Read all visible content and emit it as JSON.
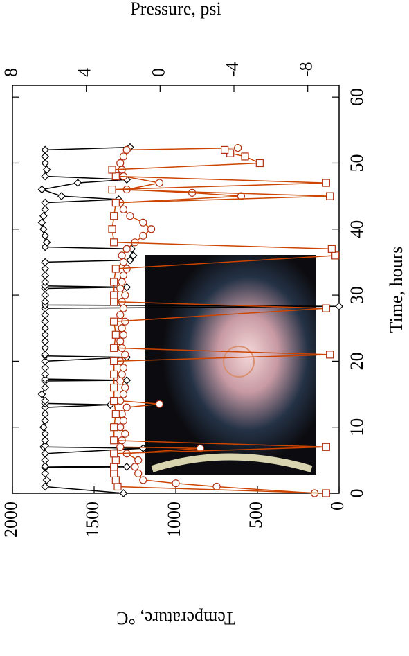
{
  "chart_data": {
    "type": "line",
    "xlabel": "Time, hours",
    "ylabel": "Temperature, °C",
    "y2label": "Pressure, psi",
    "xlim": [
      0,
      61.8
    ],
    "xticks": [
      0,
      10,
      20,
      30,
      40,
      50,
      60
    ],
    "ylim": [
      0,
      2000
    ],
    "yticks": [
      0,
      500,
      1000,
      1500,
      2000
    ],
    "y2lim": [
      -9.7,
      8
    ],
    "y2ticks": [
      8,
      4,
      0,
      -4,
      -8
    ],
    "series": [
      {
        "color": "#000000",
        "marker": "diamond",
        "x": [
          0,
          1,
          2,
          3,
          3.9,
          4,
          4.1,
          5,
          6,
          6.8,
          7,
          7.2,
          8,
          9,
          10,
          11,
          12,
          13,
          13.4,
          13.6,
          14,
          15,
          16,
          17,
          17.1,
          17.3,
          18,
          19,
          20,
          20.6,
          20.8,
          21,
          22,
          23,
          24,
          25,
          26,
          27,
          28,
          28.3,
          28.5,
          29,
          30,
          31,
          31.2,
          31.4,
          32,
          33,
          34,
          35,
          35.3,
          36,
          37,
          37.3,
          38,
          39,
          40,
          41,
          42,
          43,
          44,
          44.5,
          45,
          46,
          47,
          47.5,
          48,
          49,
          50,
          51,
          52,
          52.4
        ],
        "values": [
          1320,
          1800,
          1790,
          1800,
          1800,
          1300,
          1800,
          1800,
          1800,
          1200,
          1810,
          1800,
          1800,
          1800,
          1810,
          1800,
          1800,
          1800,
          1400,
          1800,
          1800,
          1820,
          1800,
          1800,
          1300,
          1800,
          1800,
          1800,
          1800,
          1300,
          1800,
          1800,
          1800,
          1800,
          1800,
          1800,
          1800,
          1800,
          1800,
          0,
          1800,
          1800,
          1800,
          1800,
          1300,
          1800,
          1800,
          1800,
          1800,
          1800,
          1280,
          1260,
          1270,
          1800,
          1790,
          1800,
          1810,
          1820,
          1810,
          1800,
          1800,
          1350,
          1700,
          1820,
          1600,
          1300,
          1800,
          1790,
          1800,
          1800,
          1800,
          1280
        ]
      },
      {
        "color": "#cc4400",
        "marker": "circle",
        "x": [
          0,
          1,
          1.5,
          2,
          3,
          4,
          5,
          6,
          6.8,
          7,
          8,
          9,
          10,
          11,
          12,
          13,
          13.5,
          14,
          15,
          16,
          17,
          18,
          19,
          20,
          21,
          22,
          23,
          24,
          25,
          26,
          27,
          28,
          29,
          30,
          31,
          32,
          33,
          34,
          35,
          36,
          37,
          38,
          39,
          40,
          41,
          42,
          43,
          44,
          45,
          45.5,
          46,
          47,
          48,
          49,
          50,
          51,
          52,
          52.3
        ],
        "values": [
          150,
          750,
          1000,
          1200,
          1230,
          1250,
          1230,
          1300,
          850,
          1340,
          1330,
          1310,
          1340,
          1320,
          1330,
          1300,
          1100,
          1340,
          1320,
          1310,
          1340,
          1330,
          1320,
          1340,
          1310,
          1330,
          1340,
          1320,
          1330,
          1310,
          1340,
          1320,
          1330,
          1310,
          1340,
          1330,
          1320,
          1300,
          1320,
          1330,
          1300,
          1250,
          1200,
          1150,
          1200,
          1280,
          1320,
          1340,
          600,
          900,
          1300,
          1100,
          1320,
          1330,
          1340,
          1320,
          1300,
          620
        ]
      },
      {
        "color": "#cc4400",
        "marker": "square",
        "axis": "y2",
        "x": [
          0,
          1,
          2,
          3,
          4,
          5,
          6,
          7,
          8,
          10,
          12,
          14,
          16,
          18,
          20,
          21,
          22,
          24,
          26,
          28,
          29,
          30,
          32,
          34,
          36,
          37,
          38,
          40,
          42,
          44,
          45,
          46,
          47,
          48,
          49,
          50,
          51,
          51.5,
          52
        ],
        "values": [
          -9.0,
          2.3,
          2.4,
          2.5,
          2.5,
          2.4,
          2.5,
          -9.0,
          2.5,
          2.5,
          2.4,
          2.5,
          2.5,
          2.5,
          2.5,
          -9.2,
          2.5,
          2.4,
          2.5,
          -9.0,
          2.5,
          2.5,
          2.5,
          2.4,
          -9.5,
          -9.3,
          2.5,
          2.6,
          2.5,
          2.4,
          -9.2,
          2.6,
          -9.0,
          2.4,
          2.6,
          -5.4,
          -4.6,
          -3.8,
          -3.5
        ]
      }
    ]
  }
}
